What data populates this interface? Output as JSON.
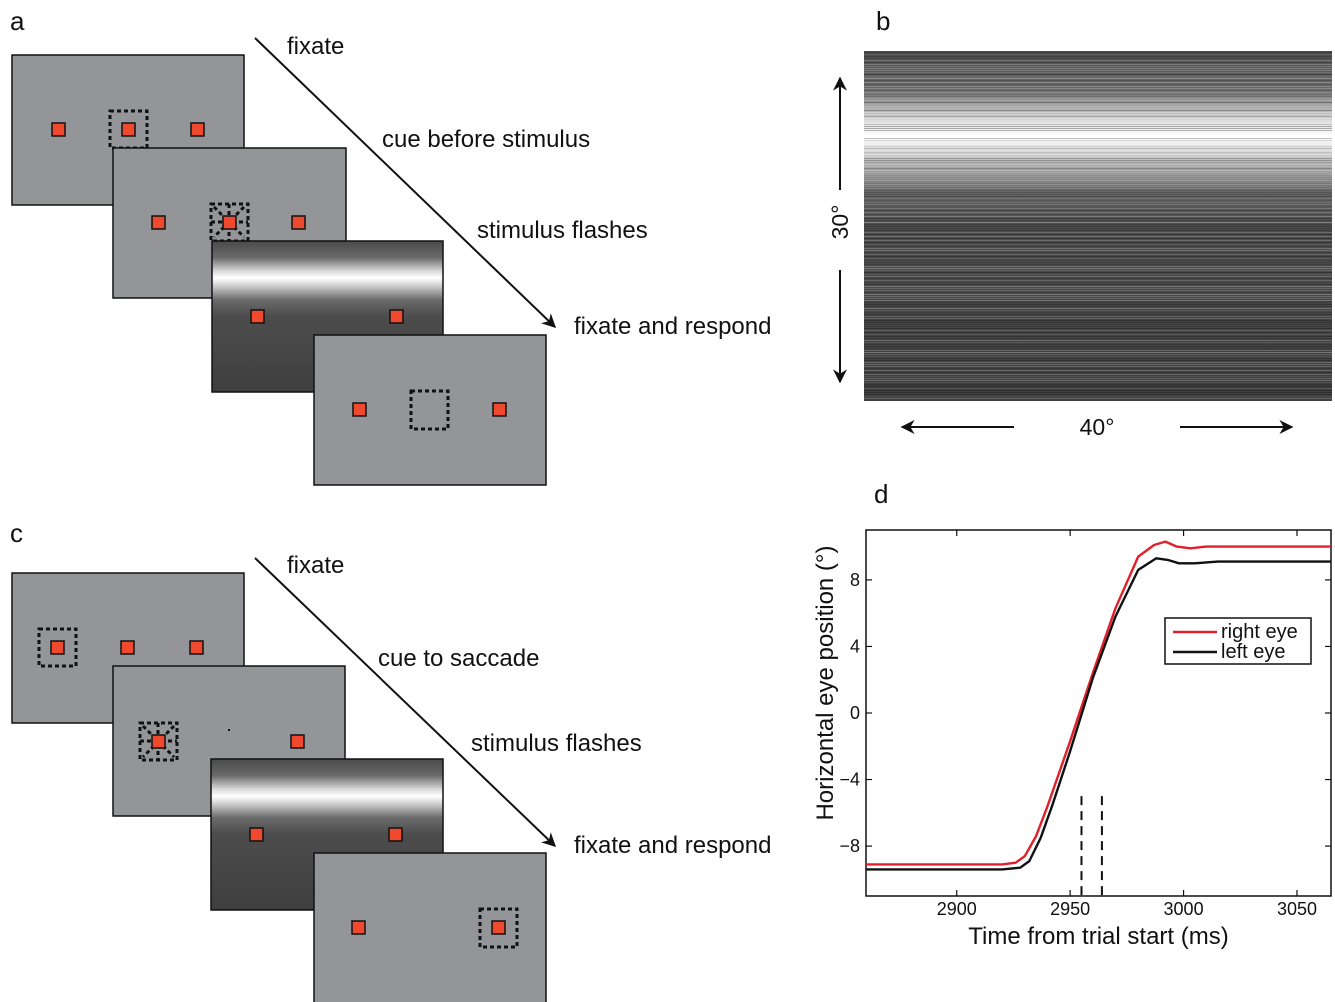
{
  "panels": {
    "a": {
      "label": "a",
      "steps": [
        "fixate",
        "cue before stimulus",
        "stimulus flashes",
        "fixate and respond"
      ]
    },
    "b": {
      "label": "b",
      "vertical_extent": "30°",
      "horizontal_extent": "40°"
    },
    "c": {
      "label": "c",
      "steps": [
        "fixate",
        "cue to saccade",
        "stimulus flashes",
        "fixate and respond"
      ]
    },
    "d": {
      "label": "d"
    }
  },
  "colors": {
    "screen_gray": "#939598",
    "target_red": "#ef4a2d",
    "right_eye": "#e0202a",
    "left_eye": "#111111"
  },
  "chart_data": {
    "type": "line",
    "title": "",
    "xlabel": "Time from trial start (ms)",
    "ylabel": "Horizontal eye position (°)",
    "xlim": [
      2860,
      3065
    ],
    "ylim": [
      -11,
      11
    ],
    "xticks": [
      2900,
      2950,
      3000,
      3050
    ],
    "yticks": [
      -8,
      -4,
      0,
      4,
      8
    ],
    "ytick_labels": [
      "−8",
      "−4",
      "0",
      "4",
      "8"
    ],
    "legend_position": "right",
    "vlines": [
      2955,
      2964
    ],
    "series": [
      {
        "name": "right eye",
        "color": "#e0202a",
        "x": [
          2860,
          2900,
          2920,
          2926,
          2930,
          2935,
          2940,
          2950,
          2960,
          2970,
          2980,
          2987,
          2992,
          2997,
          3003,
          3010,
          3030,
          3065
        ],
        "y": [
          -9.1,
          -9.1,
          -9.1,
          -9.0,
          -8.6,
          -7.4,
          -5.6,
          -1.7,
          2.4,
          6.3,
          9.4,
          10.1,
          10.3,
          10.0,
          9.9,
          10.0,
          10.0,
          10.0
        ]
      },
      {
        "name": "left eye",
        "color": "#111111",
        "x": [
          2860,
          2900,
          2920,
          2928,
          2932,
          2937,
          2942,
          2950,
          2960,
          2970,
          2980,
          2988,
          2993,
          2998,
          3005,
          3015,
          3040,
          3065
        ],
        "y": [
          -9.4,
          -9.4,
          -9.4,
          -9.3,
          -8.9,
          -7.5,
          -5.6,
          -2.3,
          2.1,
          5.8,
          8.6,
          9.3,
          9.2,
          9.0,
          9.0,
          9.1,
          9.1,
          9.1
        ]
      }
    ]
  }
}
